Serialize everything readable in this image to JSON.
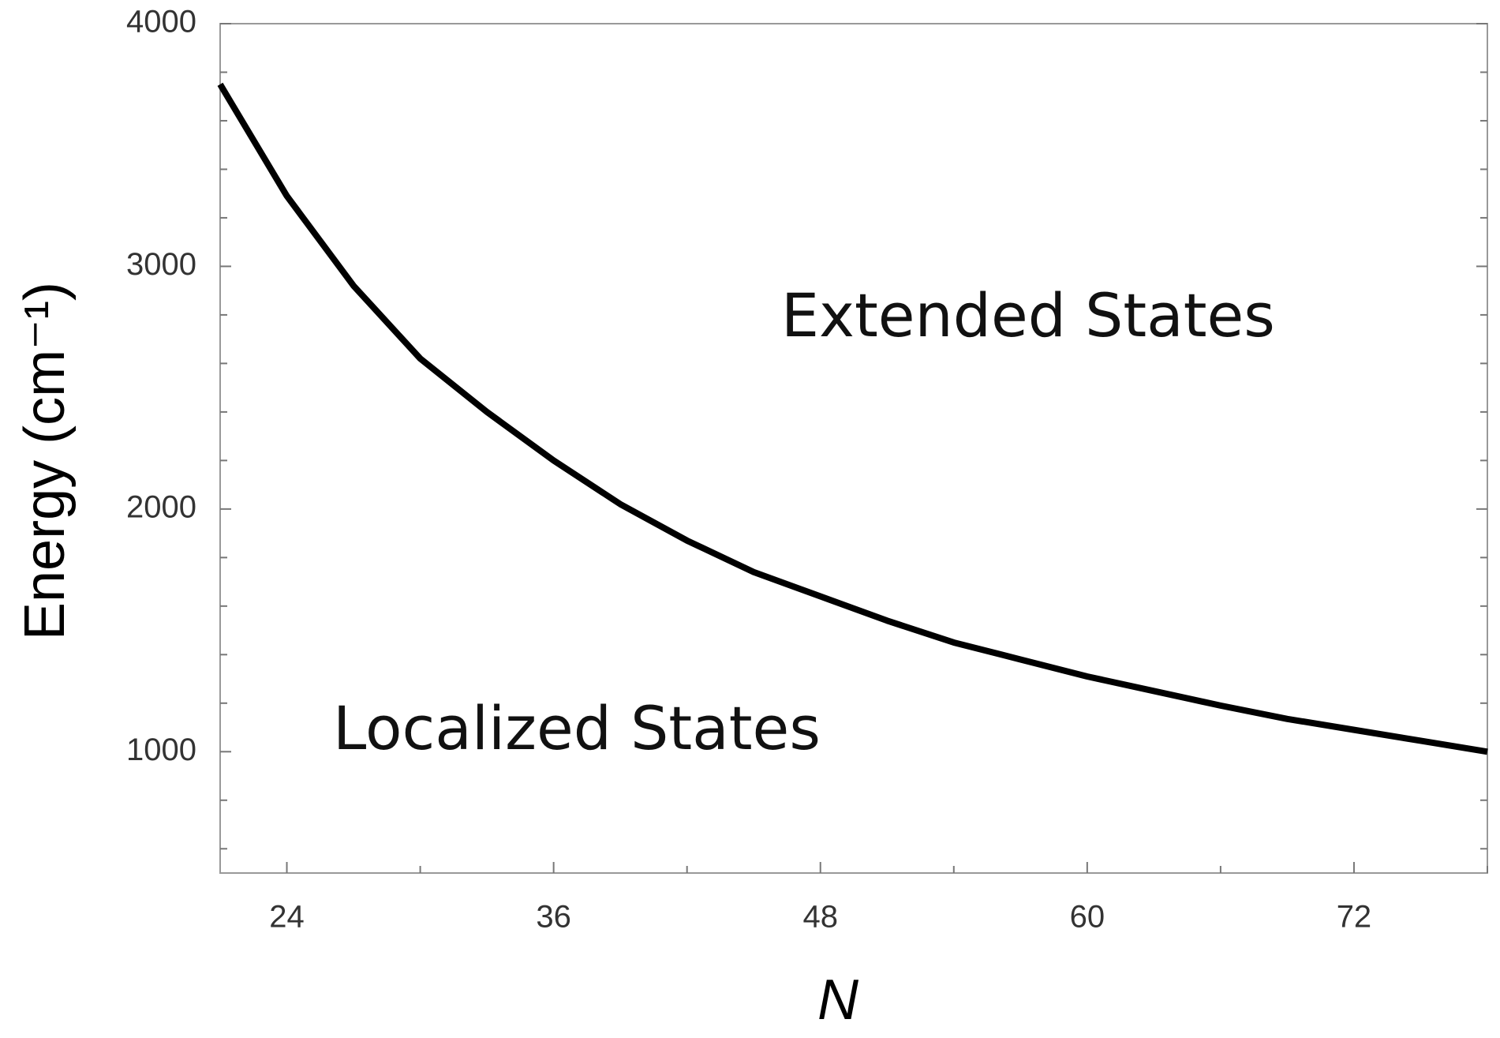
{
  "chart_data": {
    "type": "line",
    "xlabel": "N",
    "ylabel": "Energy (cm⁻¹)",
    "annotations": [
      "Extended States",
      "Localized States"
    ],
    "x": [
      21,
      24,
      27,
      30,
      33,
      36,
      39,
      42,
      45,
      48,
      51,
      54,
      57,
      60,
      63,
      66,
      69,
      72,
      75,
      78
    ],
    "series": [
      {
        "color": "#000000",
        "values": [
          3750,
          3290,
          2920,
          2620,
          2400,
          2200,
          2020,
          1870,
          1740,
          1640,
          1540,
          1450,
          1380,
          1310,
          1250,
          1190,
          1135,
          1090,
          1045,
          1000
        ]
      }
    ],
    "xlim": [
      21,
      78
    ],
    "ylim": [
      500,
      4000
    ],
    "xticks": [
      24,
      36,
      48,
      60,
      72
    ],
    "yticks": [
      1000,
      2000,
      3000,
      4000
    ],
    "xticks_minor": [
      30,
      42,
      54,
      66,
      78
    ],
    "yticks_minor": [
      600,
      800,
      1200,
      1400,
      1600,
      1800,
      2200,
      2400,
      2600,
      2800,
      3200,
      3400,
      3600,
      3800
    ],
    "grid": false
  }
}
